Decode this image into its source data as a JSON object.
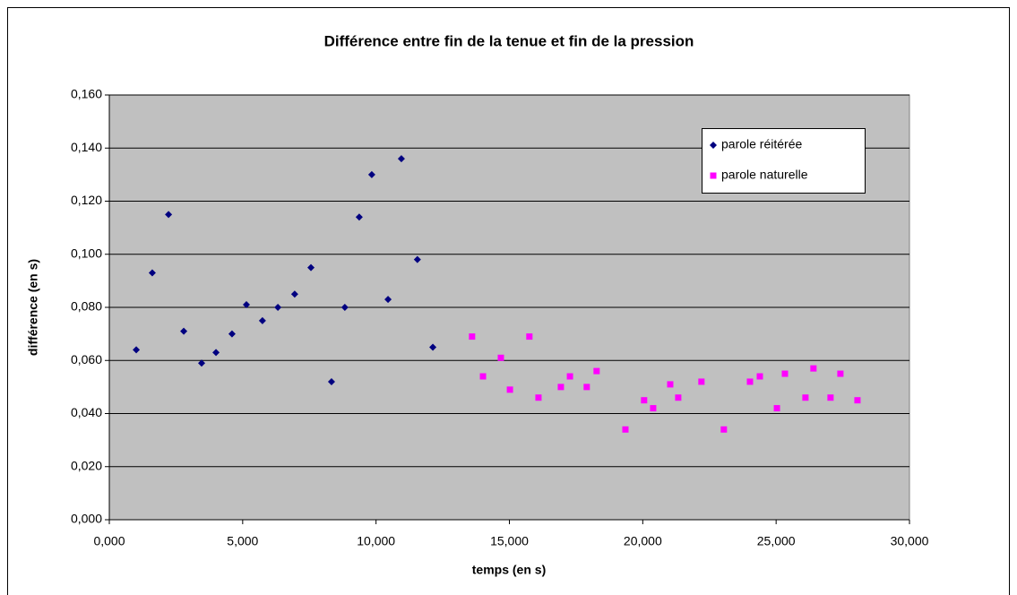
{
  "chart_data": {
    "type": "scatter",
    "title": "Différence entre fin de la  tenue et fin de la pression",
    "x_label": "temps (en s)",
    "y_label": "différence (en s)",
    "xlim": [
      0,
      30
    ],
    "ylim": [
      0,
      0.16
    ],
    "xticks": [
      {
        "value": 0,
        "label": "0,000"
      },
      {
        "value": 5,
        "label": "5,000"
      },
      {
        "value": 10,
        "label": "10,000"
      },
      {
        "value": 15,
        "label": "15,000"
      },
      {
        "value": 20,
        "label": "20,000"
      },
      {
        "value": 25,
        "label": "25,000"
      },
      {
        "value": 30,
        "label": "30,000"
      }
    ],
    "yticks": [
      {
        "value": 0,
        "label": "0,000"
      },
      {
        "value": 0.02,
        "label": "0,020"
      },
      {
        "value": 0.04,
        "label": "0,040"
      },
      {
        "value": 0.06,
        "label": "0,060"
      },
      {
        "value": 0.08,
        "label": "0,080"
      },
      {
        "value": 0.1,
        "label": "0,100"
      },
      {
        "value": 0.12,
        "label": "0,120"
      },
      {
        "value": 0.14,
        "label": "0,140"
      },
      {
        "value": 0.16,
        "label": "0,160"
      }
    ],
    "grid": true,
    "legend": "upper right",
    "series": [
      {
        "name": "parole réitérée",
        "color": "#000080",
        "marker": "diamond",
        "x": [
          1.01,
          1.61,
          2.22,
          2.79,
          3.46,
          4.0,
          4.6,
          5.14,
          5.74,
          6.32,
          6.95,
          7.56,
          8.33,
          8.83,
          9.37,
          9.84,
          10.45,
          10.95,
          11.55,
          12.13
        ],
        "values": [
          0.064,
          0.093,
          0.115,
          0.071,
          0.059,
          0.063,
          0.07,
          0.081,
          0.075,
          0.08,
          0.085,
          0.095,
          0.052,
          0.08,
          0.114,
          0.13,
          0.083,
          0.136,
          0.098,
          0.065
        ]
      },
      {
        "name": "parole naturelle",
        "color": "#ff00ff",
        "marker": "square",
        "x": [
          13.6,
          14.01,
          14.68,
          15.02,
          15.75,
          16.09,
          16.93,
          17.27,
          17.9,
          18.27,
          19.35,
          20.05,
          20.39,
          21.03,
          21.33,
          22.2,
          23.04,
          24.02,
          24.39,
          25.03,
          25.33,
          26.1,
          26.4,
          27.04,
          27.41,
          28.05
        ],
        "values": [
          0.069,
          0.054,
          0.061,
          0.049,
          0.069,
          0.046,
          0.05,
          0.054,
          0.05,
          0.056,
          0.034,
          0.045,
          0.042,
          0.051,
          0.046,
          0.052,
          0.034,
          0.052,
          0.054,
          0.042,
          0.055,
          0.046,
          0.057,
          0.046,
          0.055,
          0.045
        ]
      }
    ]
  }
}
